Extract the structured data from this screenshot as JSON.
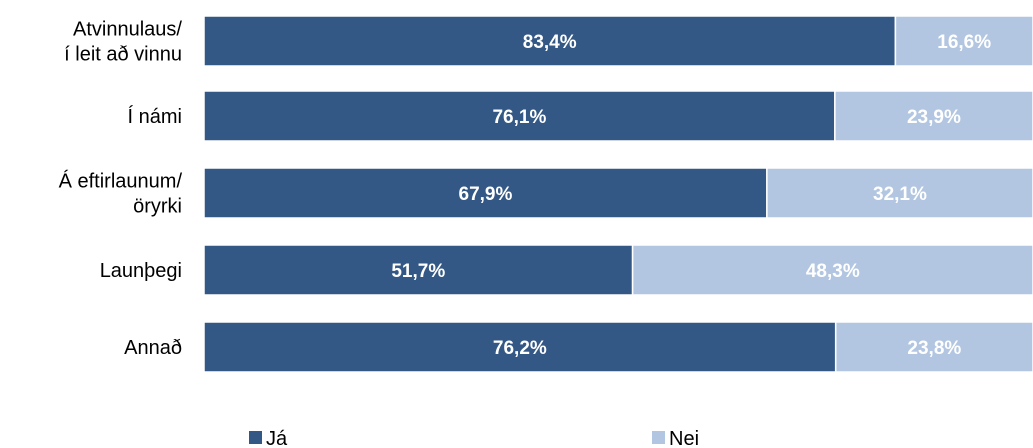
{
  "chart_data": {
    "type": "bar",
    "orientation": "horizontal",
    "stacked": true,
    "categories": [
      [
        "Atvinnulaus/",
        "í leit að vinnu"
      ],
      [
        "Í námi"
      ],
      [
        "Á eftirlaunum/",
        "öryrki"
      ],
      [
        "Launþegi"
      ],
      [
        "Annað"
      ]
    ],
    "series": [
      {
        "name": "Já",
        "color": "#335885",
        "values": [
          83.4,
          76.1,
          67.9,
          51.7,
          76.2
        ],
        "labels": [
          "83,4%",
          "76,1%",
          "67,9%",
          "51,7%",
          "76,2%"
        ]
      },
      {
        "name": "Nei",
        "color": "#b3c6e1",
        "values": [
          16.6,
          23.9,
          32.1,
          48.3,
          23.8
        ],
        "labels": [
          "16,6%",
          "23,9%",
          "32,1%",
          "48,3%",
          "23,8%"
        ]
      }
    ],
    "xlim": [
      0,
      100
    ],
    "grid": false,
    "legend_position": "bottom",
    "title": "",
    "xlabel": "",
    "ylabel": ""
  }
}
